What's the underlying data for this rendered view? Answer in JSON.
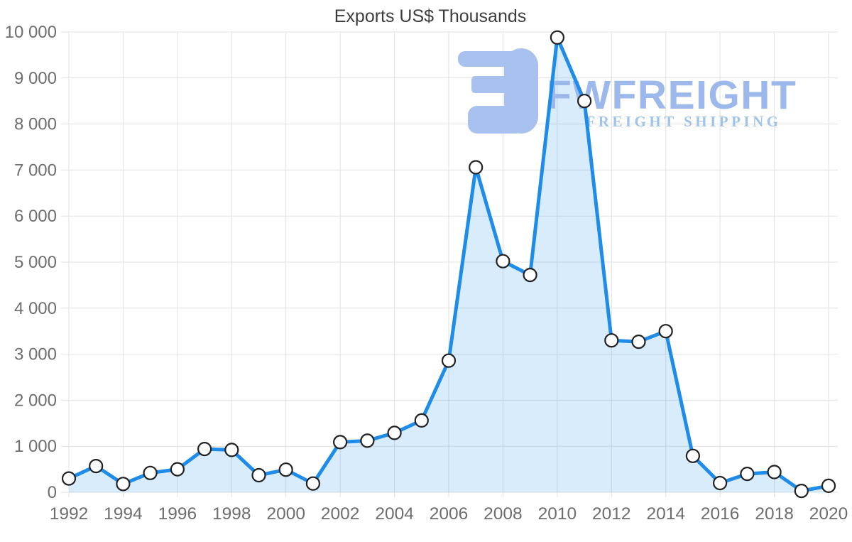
{
  "logo": {
    "brand": "FWFREIGHT",
    "subtitle": "FREIGHT SHIPPING"
  },
  "colors": {
    "line": "#1e8ce8",
    "area_fill": "rgba(30,140,232,0.17)",
    "marker_fill": "#ffffff",
    "marker_stroke": "#222222",
    "grid": "#e2e2e2",
    "tick_label": "#6e6e6e",
    "title": "#3d3d3d",
    "logo_icon": "#a9c1ee",
    "logo_brand": "#9db9ec",
    "logo_subtitle": "#a0c3ea"
  },
  "chart_data": {
    "type": "area",
    "title": "Exports US$ Thousands",
    "xlabel": "",
    "ylabel": "",
    "x": [
      1992,
      1993,
      1994,
      1995,
      1996,
      1997,
      1998,
      1999,
      2000,
      2001,
      2002,
      2003,
      2004,
      2005,
      2006,
      2007,
      2008,
      2009,
      2010,
      2011,
      2012,
      2013,
      2014,
      2015,
      2016,
      2017,
      2018,
      2019,
      2020
    ],
    "values": [
      300,
      570,
      180,
      420,
      500,
      940,
      920,
      370,
      490,
      190,
      1090,
      1120,
      1290,
      1560,
      2860,
      7060,
      5020,
      4720,
      9880,
      8500,
      3300,
      3270,
      3500,
      790,
      200,
      400,
      440,
      30,
      140
    ],
    "ylim": [
      0,
      10000
    ],
    "ytick_step": 1000,
    "xtick_step": 2,
    "grid": true,
    "legend": false,
    "y_ticks": [
      "0",
      "1 000",
      "2 000",
      "3 000",
      "4 000",
      "5 000",
      "6 000",
      "7 000",
      "8 000",
      "9 000",
      "10 000"
    ],
    "x_ticks": [
      "1992",
      "1994",
      "1996",
      "1998",
      "2000",
      "2002",
      "2004",
      "2006",
      "2008",
      "2010",
      "2012",
      "2014",
      "2016",
      "2018",
      "2020"
    ]
  }
}
